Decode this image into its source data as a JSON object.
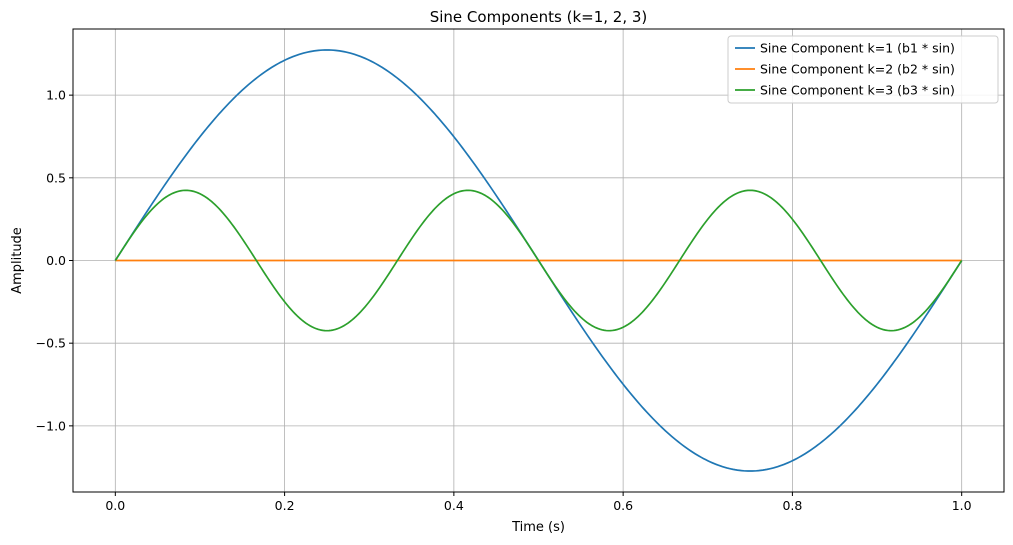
{
  "chart_data": {
    "type": "line",
    "title": "Sine Components (k=1, 2, 3)",
    "xlabel": "Time (s)",
    "ylabel": "Amplitude",
    "xlim": [
      -0.05,
      1.05
    ],
    "ylim": [
      -1.4,
      1.4
    ],
    "xticks": [
      0.0,
      0.2,
      0.4,
      0.6,
      0.8,
      1.0
    ],
    "xtick_labels": [
      "0.0",
      "0.2",
      "0.4",
      "0.6",
      "0.8",
      "1.0"
    ],
    "yticks": [
      -1.0,
      -0.5,
      0.0,
      0.5,
      1.0
    ],
    "ytick_labels": [
      "−1.0",
      "−0.5",
      "0.0",
      "0.5",
      "1.0"
    ],
    "grid": true,
    "legend_position": "top-right",
    "series": [
      {
        "name": "Sine Component k=1 (b1 * sin)",
        "color": "#1f77b4",
        "formula": "1.2732 * sin(2*pi*1*t)",
        "amplitude": 1.2732,
        "k": 1,
        "x": [
          0.0,
          0.05,
          0.1,
          0.15,
          0.2,
          0.25,
          0.3,
          0.35,
          0.4,
          0.45,
          0.5,
          0.55,
          0.6,
          0.65,
          0.7,
          0.75,
          0.8,
          0.85,
          0.9,
          0.95,
          1.0
        ],
        "values": [
          0.0,
          0.393,
          0.748,
          1.03,
          1.211,
          1.273,
          1.211,
          1.03,
          0.748,
          0.393,
          0.0,
          -0.393,
          -0.748,
          -1.03,
          -1.211,
          -1.273,
          -1.211,
          -1.03,
          -0.748,
          -0.393,
          0.0
        ]
      },
      {
        "name": "Sine Component k=2 (b2 * sin)",
        "color": "#ff7f0e",
        "formula": "0 * sin(2*pi*2*t)",
        "amplitude": 0.0,
        "k": 2,
        "x": [
          0.0,
          0.25,
          0.5,
          0.75,
          1.0
        ],
        "values": [
          0.0,
          0.0,
          0.0,
          0.0,
          0.0
        ]
      },
      {
        "name": "Sine Component k=3 (b3 * sin)",
        "color": "#2ca02c",
        "formula": "0.4244 * sin(2*pi*3*t)",
        "amplitude": 0.4244,
        "k": 3,
        "x": [
          0.0,
          0.0833,
          0.1667,
          0.25,
          0.3333,
          0.4167,
          0.5,
          0.5833,
          0.6667,
          0.75,
          0.8333,
          0.9167,
          1.0
        ],
        "values": [
          0.0,
          0.424,
          0.0,
          -0.424,
          0.0,
          0.424,
          0.0,
          -0.424,
          0.0,
          0.424,
          0.0,
          -0.424,
          0.0
        ]
      }
    ]
  }
}
